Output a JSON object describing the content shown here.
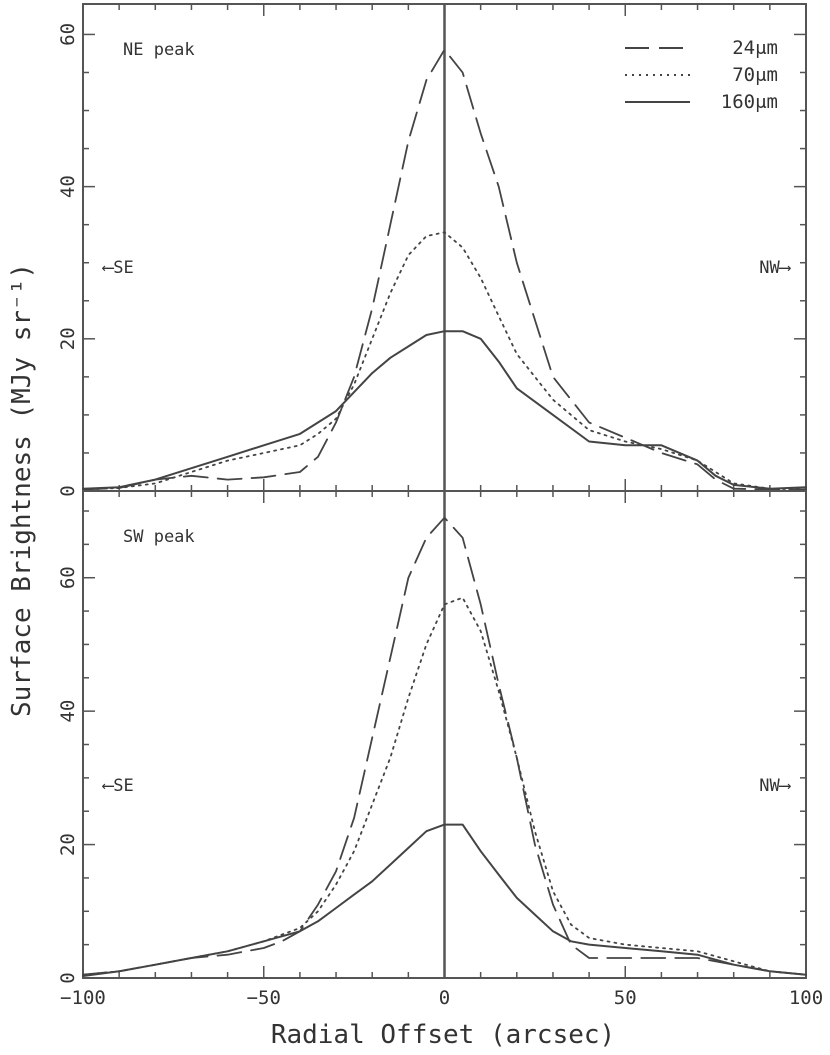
{
  "chart_data": {
    "type": "line",
    "xlabel": "Radial Offset (arcsec)",
    "ylabel": "Surface Brightness (MJy sr⁻¹)",
    "xlim": [
      -100,
      100
    ],
    "xticks": [
      -100,
      -50,
      0,
      50,
      100
    ],
    "xtick_labels": [
      "−100",
      "−50",
      "0",
      "50",
      "100"
    ],
    "grid": false,
    "legend": {
      "placement": "top-right",
      "entries": [
        {
          "label": "24μm",
          "style": "dashed"
        },
        {
          "label": "70μm",
          "style": "dotted"
        },
        {
          "label": "160μm",
          "style": "solid"
        }
      ]
    },
    "direction_labels": {
      "left": "⟵SE",
      "right": "NW⟶"
    },
    "panels": [
      {
        "label": "NE peak",
        "ylim": [
          0,
          64
        ],
        "yticks": [
          0,
          20,
          40,
          60
        ],
        "ytick_labels": [
          "0",
          "20",
          "40",
          "60"
        ],
        "series": [
          {
            "name": "24μm",
            "style": "dashed",
            "x": [
              -100,
              -90,
              -80,
              -70,
              -60,
              -50,
              -40,
              -35,
              -30,
              -25,
              -20,
              -15,
              -10,
              -5,
              0,
              5,
              10,
              15,
              20,
              30,
              40,
              50,
              60,
              70,
              75,
              80,
              90,
              100
            ],
            "y": [
              0.2,
              0.4,
              1.5,
              2.0,
              1.5,
              1.8,
              2.5,
              4.5,
              9.0,
              15.0,
              24.0,
              35.0,
              46.0,
              54.0,
              58.0,
              55.0,
              47.0,
              40.0,
              30.0,
              15.0,
              9.0,
              7.0,
              5.0,
              3.5,
              1.5,
              0.3,
              0.2,
              0.2
            ]
          },
          {
            "name": "70μm",
            "style": "dotted",
            "x": [
              -100,
              -90,
              -80,
              -70,
              -60,
              -50,
              -40,
              -35,
              -30,
              -25,
              -20,
              -15,
              -10,
              -5,
              0,
              5,
              10,
              15,
              20,
              30,
              40,
              50,
              60,
              70,
              75,
              80,
              90,
              100
            ],
            "y": [
              0.2,
              0.4,
              1.0,
              2.5,
              4.0,
              5.0,
              6.0,
              7.5,
              9.5,
              14.0,
              20.0,
              26.0,
              31.0,
              33.5,
              34.0,
              32.0,
              28.0,
              23.0,
              18.0,
              12.0,
              8.0,
              6.5,
              5.5,
              4.0,
              2.5,
              1.0,
              0.3,
              0.2
            ]
          },
          {
            "name": "160μm",
            "style": "solid",
            "x": [
              -100,
              -90,
              -80,
              -70,
              -60,
              -50,
              -40,
              -30,
              -25,
              -20,
              -15,
              -10,
              -5,
              0,
              5,
              10,
              15,
              20,
              30,
              40,
              50,
              60,
              70,
              75,
              80,
              90,
              100
            ],
            "y": [
              0.3,
              0.5,
              1.5,
              3.0,
              4.5,
              6.0,
              7.5,
              10.5,
              13.0,
              15.5,
              17.5,
              19.0,
              20.5,
              21.0,
              21.0,
              20.0,
              17.0,
              13.5,
              10.0,
              6.5,
              6.0,
              6.0,
              4.0,
              2.0,
              0.8,
              0.3,
              0.5
            ]
          }
        ]
      },
      {
        "label": "SW peak",
        "ylim": [
          0,
          73
        ],
        "yticks": [
          0,
          20,
          40,
          60
        ],
        "ytick_labels": [
          "0",
          "20",
          "40",
          "60"
        ],
        "series": [
          {
            "name": "24μm",
            "style": "dashed",
            "x": [
              -100,
              -90,
              -80,
              -70,
              -60,
              -50,
              -45,
              -40,
              -35,
              -30,
              -25,
              -20,
              -15,
              -10,
              -5,
              0,
              5,
              10,
              15,
              20,
              25,
              30,
              35,
              40,
              50,
              60,
              70,
              80,
              90,
              100
            ],
            "y": [
              0.5,
              1.0,
              2.0,
              3.0,
              3.5,
              4.5,
              5.5,
              7.0,
              11.0,
              16.0,
              24.0,
              36.0,
              48.0,
              60.0,
              66.0,
              69.0,
              66.0,
              56.0,
              44.0,
              33.0,
              20.0,
              11.0,
              5.0,
              3.0,
              3.0,
              3.0,
              3.0,
              2.0,
              1.0,
              0.5
            ]
          },
          {
            "name": "70μm",
            "style": "dotted",
            "x": [
              -100,
              -90,
              -80,
              -70,
              -60,
              -50,
              -40,
              -35,
              -30,
              -25,
              -20,
              -15,
              -10,
              -5,
              0,
              5,
              10,
              15,
              20,
              25,
              30,
              35,
              40,
              50,
              60,
              70,
              80,
              90,
              100
            ],
            "y": [
              0.5,
              1.0,
              2.0,
              3.0,
              4.0,
              5.5,
              7.5,
              10.0,
              14.0,
              19.0,
              26.0,
              33.0,
              42.0,
              50.0,
              56.0,
              57.0,
              52.0,
              43.0,
              33.0,
              22.0,
              13.0,
              8.0,
              6.0,
              5.0,
              4.5,
              4.0,
              2.5,
              1.0,
              0.5
            ]
          },
          {
            "name": "160μm",
            "style": "solid",
            "x": [
              -100,
              -90,
              -80,
              -70,
              -60,
              -50,
              -40,
              -35,
              -30,
              -25,
              -20,
              -15,
              -10,
              -5,
              0,
              5,
              10,
              15,
              20,
              25,
              30,
              35,
              40,
              50,
              60,
              70,
              80,
              90,
              100
            ],
            "y": [
              0.3,
              1.0,
              2.0,
              3.0,
              4.0,
              5.5,
              7.0,
              8.5,
              10.5,
              12.5,
              14.5,
              17.0,
              19.5,
              22.0,
              23.0,
              23.0,
              19.0,
              15.5,
              12.0,
              9.5,
              7.0,
              5.5,
              5.0,
              4.5,
              4.0,
              3.5,
              2.0,
              1.0,
              0.5
            ]
          }
        ]
      }
    ]
  }
}
